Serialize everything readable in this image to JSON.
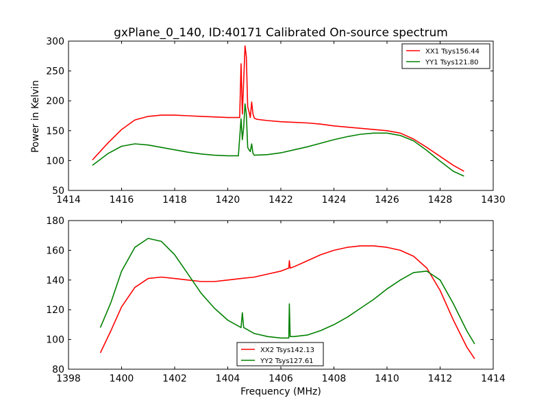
{
  "chart_data": [
    {
      "type": "line",
      "title": "gxPlane_0_140, ID:40171 Calibrated On-source spectrum",
      "xlabel": "",
      "ylabel": "Power in Kelvin",
      "xlim": [
        1414,
        1430
      ],
      "ylim": [
        50,
        300
      ],
      "xticks": [
        1414,
        1416,
        1418,
        1420,
        1422,
        1424,
        1426,
        1428,
        1430
      ],
      "yticks": [
        50,
        100,
        150,
        200,
        250,
        300
      ],
      "legend_position": "top-right",
      "series": [
        {
          "name": "XX1 Tsys156.44",
          "color": "#ff0000",
          "x": [
            1414.9,
            1415.5,
            1416.0,
            1416.5,
            1417.0,
            1417.5,
            1418.0,
            1418.5,
            1419.0,
            1419.5,
            1420.0,
            1420.45,
            1420.5,
            1420.55,
            1420.6,
            1420.65,
            1420.7,
            1420.75,
            1420.8,
            1420.85,
            1420.9,
            1420.95,
            1421.0,
            1421.1,
            1421.5,
            1422.0,
            1422.5,
            1423.0,
            1423.5,
            1424.0,
            1424.5,
            1425.0,
            1425.5,
            1426.0,
            1426.5,
            1427.0,
            1427.5,
            1428.0,
            1428.5,
            1428.9
          ],
          "values": [
            101,
            130,
            152,
            168,
            174,
            176,
            176,
            175,
            174,
            173,
            172,
            172,
            262,
            178,
            232,
            292,
            274,
            190,
            182,
            172,
            198,
            178,
            171,
            169,
            167,
            165,
            164,
            163,
            161,
            158,
            156,
            154,
            152,
            150,
            146,
            136,
            122,
            107,
            92,
            82
          ]
        },
        {
          "name": "YY1 Tsys121.80",
          "color": "#008000",
          "x": [
            1414.9,
            1415.5,
            1416.0,
            1416.5,
            1417.0,
            1417.5,
            1418.0,
            1418.5,
            1419.0,
            1419.5,
            1420.0,
            1420.4,
            1420.5,
            1420.55,
            1420.6,
            1420.65,
            1420.7,
            1420.75,
            1420.8,
            1420.85,
            1420.9,
            1420.95,
            1421.0,
            1421.5,
            1422.0,
            1422.5,
            1423.0,
            1423.5,
            1424.0,
            1424.5,
            1425.0,
            1425.5,
            1426.0,
            1426.5,
            1427.0,
            1427.5,
            1428.0,
            1428.5,
            1428.9
          ],
          "values": [
            92,
            112,
            124,
            128,
            126,
            122,
            118,
            114,
            111,
            109,
            108,
            108,
            170,
            135,
            155,
            195,
            178,
            122,
            118,
            115,
            128,
            112,
            109,
            110,
            113,
            118,
            123,
            129,
            135,
            140,
            144,
            146,
            146,
            142,
            133,
            117,
            99,
            82,
            74
          ]
        }
      ]
    },
    {
      "type": "line",
      "title": "",
      "xlabel": "Frequency (MHz)",
      "ylabel": "",
      "xlim": [
        1398,
        1414
      ],
      "ylim": [
        80,
        180
      ],
      "xticks": [
        1398,
        1400,
        1402,
        1404,
        1406,
        1408,
        1410,
        1412,
        1414
      ],
      "yticks": [
        80,
        100,
        120,
        140,
        160,
        180
      ],
      "legend_position": "bottom-center",
      "series": [
        {
          "name": "XX2 Tsys142.13",
          "color": "#ff0000",
          "x": [
            1399.2,
            1399.6,
            1400.0,
            1400.5,
            1401.0,
            1401.5,
            1402.0,
            1402.5,
            1403.0,
            1403.5,
            1404.0,
            1404.5,
            1405.0,
            1405.5,
            1406.0,
            1406.3,
            1406.32,
            1406.35,
            1406.5,
            1407.0,
            1407.5,
            1408.0,
            1408.5,
            1409.0,
            1409.5,
            1410.0,
            1410.5,
            1411.0,
            1411.5,
            1412.0,
            1412.5,
            1413.0,
            1413.3
          ],
          "values": [
            91,
            106,
            122,
            135,
            141,
            142,
            141,
            140,
            139,
            139,
            140,
            141,
            142,
            144,
            146,
            148,
            153,
            148,
            149,
            153,
            157,
            160,
            162,
            163,
            163,
            162,
            160,
            156,
            148,
            133,
            113,
            95,
            87
          ]
        },
        {
          "name": "YY2 Tsys127.61",
          "color": "#008000",
          "x": [
            1399.2,
            1399.6,
            1400.0,
            1400.5,
            1401.0,
            1401.5,
            1402.0,
            1402.5,
            1403.0,
            1403.5,
            1404.0,
            1404.5,
            1404.55,
            1404.6,
            1405.0,
            1405.5,
            1406.0,
            1406.3,
            1406.32,
            1406.35,
            1406.5,
            1407.0,
            1407.5,
            1408.0,
            1408.5,
            1409.0,
            1409.5,
            1410.0,
            1410.5,
            1411.0,
            1411.5,
            1412.0,
            1412.5,
            1413.0,
            1413.3
          ],
          "values": [
            108,
            125,
            146,
            162,
            168,
            166,
            157,
            144,
            131,
            121,
            113,
            108,
            118,
            108,
            104,
            102,
            101,
            101,
            124,
            102,
            102,
            103,
            106,
            110,
            115,
            121,
            127,
            134,
            140,
            145,
            146,
            140,
            124,
            106,
            97
          ]
        }
      ]
    }
  ]
}
